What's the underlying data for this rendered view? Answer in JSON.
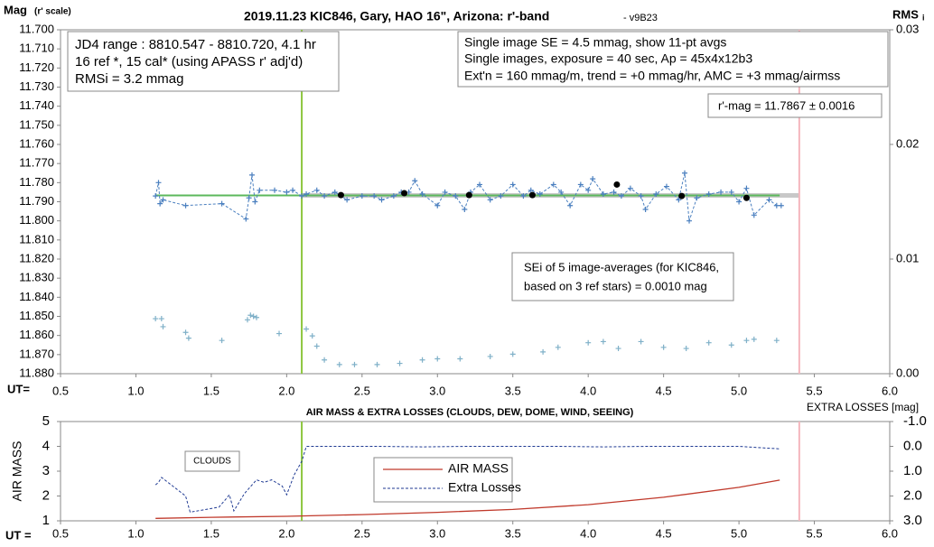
{
  "chart_data": [
    {
      "type": "scatter",
      "title": "2019.11.23 KIC846, Gary, HAO 16\", Arizona: r'-band",
      "version": "- v9B23",
      "y_label": "Mag",
      "y_label_note": "(r' scale)",
      "y2_label": "RMS",
      "y2_label_sub": "i",
      "x_label": "UT=",
      "xlim": [
        0.5,
        6.0
      ],
      "xticks": [
        0.5,
        {
          "value": 1,
          "label": "1.0"
        },
        1.5,
        {
          "value": 2,
          "label": "2.0"
        },
        2.5,
        {
          "value": 3,
          "label": "3.0"
        },
        3.5,
        {
          "value": 4,
          "label": "4.0"
        },
        4.5,
        {
          "value": 5,
          "label": "5.0"
        },
        5.5,
        {
          "value": 6,
          "label": "6.0"
        }
      ],
      "ylim": [
        11.88,
        11.7
      ],
      "yticks": [
        {
          "value": 11.7,
          "label": "11.700"
        },
        {
          "value": 11.71,
          "label": "11.710"
        },
        {
          "value": 11.72,
          "label": "11.720"
        },
        {
          "value": 11.73,
          "label": "11.730"
        },
        {
          "value": 11.74,
          "label": "11.740"
        },
        {
          "value": 11.75,
          "label": "11.750"
        },
        {
          "value": 11.76,
          "label": "11.760"
        },
        {
          "value": 11.77,
          "label": "11.770"
        },
        {
          "value": 11.78,
          "label": "11.780"
        },
        {
          "value": 11.79,
          "label": "11.790"
        },
        {
          "value": 11.8,
          "label": "11.800"
        },
        {
          "value": 11.81,
          "label": "11.810"
        },
        {
          "value": 11.82,
          "label": "11.820"
        },
        {
          "value": 11.83,
          "label": "11.830"
        },
        {
          "value": 11.84,
          "label": "11.840"
        },
        {
          "value": 11.85,
          "label": "11.850"
        },
        {
          "value": 11.86,
          "label": "11.860"
        },
        {
          "value": 11.87,
          "label": "11.870"
        },
        {
          "value": 11.88,
          "label": "11.880"
        }
      ],
      "y2lim": [
        0,
        0.03
      ],
      "y2ticks": [
        {
          "value": 0,
          "label": "0.00"
        },
        0.01,
        0.02,
        0.03
      ],
      "grid": false,
      "markers": [
        {
          "x": 2.1,
          "color": "#8dc63f"
        },
        {
          "x": 5.4,
          "color": "#f4b6bd"
        }
      ],
      "fit_band": {
        "x": [
          2.1,
          5.4
        ],
        "y": 11.7867,
        "color": "#c8c8c8"
      },
      "fit_line": {
        "x": [
          1.13,
          5.27
        ],
        "y": 11.7867,
        "color": "#5cb85c"
      },
      "series": [
        {
          "color": "#4a7fbf",
          "marker": "plus",
          "line": "dashed",
          "x": [
            1.13,
            1.15,
            1.16,
            1.18,
            1.33,
            1.57,
            1.73,
            1.75,
            1.77,
            1.79,
            1.82,
            1.92,
            2.0,
            2.04,
            2.1,
            2.13,
            2.2,
            2.25,
            2.32,
            2.4,
            2.5,
            2.58,
            2.63,
            2.71,
            2.76,
            2.81,
            2.85,
            2.9,
            3.0,
            3.05,
            3.12,
            3.18,
            3.22,
            3.28,
            3.35,
            3.42,
            3.5,
            3.57,
            3.62,
            3.68,
            3.77,
            3.82,
            3.88,
            3.95,
            4.0,
            4.03,
            4.1,
            4.17,
            4.22,
            4.28,
            4.35,
            4.38,
            4.45,
            4.52,
            4.6,
            4.64,
            4.67,
            4.72,
            4.8,
            4.88,
            4.95,
            5.0,
            5.05,
            5.1,
            5.2,
            5.25,
            5.28
          ],
          "values": [
            11.787,
            11.78,
            11.791,
            11.789,
            11.792,
            11.791,
            11.799,
            11.788,
            11.776,
            11.79,
            11.784,
            11.784,
            11.785,
            11.784,
            11.787,
            11.786,
            11.784,
            11.787,
            11.785,
            11.789,
            11.787,
            11.787,
            11.789,
            11.787,
            11.785,
            11.785,
            11.779,
            11.786,
            11.792,
            11.785,
            11.787,
            11.794,
            11.785,
            11.781,
            11.789,
            11.787,
            11.781,
            11.787,
            11.784,
            11.786,
            11.781,
            11.785,
            11.792,
            11.781,
            11.784,
            11.778,
            11.786,
            11.785,
            11.787,
            11.783,
            11.787,
            11.794,
            11.786,
            11.782,
            11.789,
            11.775,
            11.8,
            11.788,
            11.786,
            11.785,
            11.785,
            11.79,
            11.783,
            11.797,
            11.789,
            11.792,
            11.792
          ]
        },
        {
          "color": "#000000",
          "marker": "dot",
          "line": "none",
          "x": [
            2.36,
            2.78,
            3.21,
            3.63,
            4.19,
            4.62,
            5.05
          ],
          "values": [
            11.7865,
            11.7855,
            11.7865,
            11.7865,
            11.781,
            11.787,
            11.788
          ]
        },
        {
          "color": "#7fb0c8",
          "marker": "plus",
          "line": "none",
          "axis": "y2",
          "x": [
            1.13,
            1.17,
            1.18,
            1.33,
            1.35,
            1.57,
            1.74,
            1.76,
            1.78,
            1.8,
            1.95,
            2.13,
            2.17,
            2.2,
            2.25,
            2.35,
            2.45,
            2.6,
            2.75,
            2.9,
            3.0,
            3.15,
            3.35,
            3.5,
            3.7,
            3.8,
            4.0,
            4.1,
            4.2,
            4.35,
            4.5,
            4.65,
            4.8,
            4.95,
            5.05,
            5.1,
            5.25
          ],
          "values": [
            0.0048,
            0.0048,
            0.0041,
            0.0036,
            0.0031,
            0.0029,
            0.0047,
            0.0051,
            0.005,
            0.0049,
            0.0035,
            0.0039,
            0.0033,
            0.0024,
            0.0012,
            0.0008,
            0.0008,
            0.0008,
            0.0009,
            0.0012,
            0.0013,
            0.0013,
            0.0015,
            0.0017,
            0.0019,
            0.0023,
            0.0027,
            0.0028,
            0.0022,
            0.0028,
            0.0023,
            0.0022,
            0.0027,
            0.0025,
            0.0029,
            0.003,
            0.0029
          ]
        }
      ],
      "annotations": {
        "range_box": [
          "JD4 range : 8810.547 - 8810.720,  4.1  hr",
          "16 ref *, 15 cal* (using APASS r' adj'd)",
          "RMSi = 3.2 mmag"
        ],
        "info_box": [
          "Single image SE = 4.5 mmag, show  11-pt avgs",
          "Single images, exposure = 40 sec, Ap = 45x4x12b3",
          "Ext'n = 160 mmag/m, trend =  +0 mmag/hr, AMC = +3 mmag/airmss"
        ],
        "mag_box": "r'-mag = 11.7867 ± 0.0016",
        "sei_box": [
          "SEi of 5 image-averages (for KIC846,",
          "based on 3 ref stars) = 0.0010 mag"
        ]
      }
    },
    {
      "type": "line",
      "title": "AIR MASS & EXTRA LOSSES (CLOUDS, DEW, DOME, WIND, SEEING)",
      "x_label": "UT =",
      "y_label": "AIR MASS",
      "y2_label": "EXTRA LOSSES [mag]",
      "xlim": [
        0.5,
        6.0
      ],
      "xticks": [
        0.5,
        {
          "value": 1,
          "label": "1.0"
        },
        1.5,
        {
          "value": 2,
          "label": "2.0"
        },
        2.5,
        {
          "value": 3,
          "label": "3.0"
        },
        3.5,
        {
          "value": 4,
          "label": "4.0"
        },
        4.5,
        {
          "value": 5,
          "label": "5.0"
        },
        5.5,
        {
          "value": 6,
          "label": "6.0"
        }
      ],
      "ylim": [
        1,
        5
      ],
      "yticks": [
        1,
        2,
        3,
        4,
        5
      ],
      "y2lim": [
        3.0,
        -1.0
      ],
      "y2ticks": [
        {
          "value": -1,
          "label": "-1.0"
        },
        {
          "value": 0,
          "label": "0.0"
        },
        {
          "value": 1,
          "label": "1.0"
        },
        {
          "value": 2,
          "label": "2.0"
        },
        {
          "value": 3,
          "label": "3.0"
        }
      ],
      "grid": false,
      "markers": [
        {
          "x": 2.1,
          "color": "#8dc63f"
        },
        {
          "x": 5.4,
          "color": "#f4b6bd"
        }
      ],
      "annotation": "CLOUDS",
      "series": [
        {
          "name": "AIR MASS",
          "color": "#c0392b",
          "line": "solid",
          "x": [
            1.13,
            1.5,
            2.0,
            2.5,
            3.0,
            3.5,
            4.0,
            4.5,
            5.0,
            5.27
          ],
          "values": [
            1.1,
            1.14,
            1.18,
            1.25,
            1.34,
            1.46,
            1.65,
            1.95,
            2.35,
            2.64
          ]
        },
        {
          "name": "Extra Losses",
          "color": "#1f3a93",
          "line": "dashed",
          "axis": "y2",
          "x": [
            1.13,
            1.15,
            1.17,
            1.33,
            1.36,
            1.55,
            1.6,
            1.62,
            1.65,
            1.72,
            1.8,
            1.85,
            1.9,
            1.97,
            2.0,
            2.05,
            2.1,
            2.13,
            2.3,
            2.6,
            2.9,
            3.2,
            3.5,
            3.8,
            4.1,
            4.4,
            4.7,
            5.0,
            5.27
          ],
          "values": [
            1.55,
            1.45,
            1.25,
            2.0,
            2.65,
            2.45,
            2.1,
            1.95,
            2.6,
            1.9,
            1.35,
            1.45,
            1.35,
            1.6,
            1.95,
            1.15,
            0.6,
            0.0,
            0.0,
            0.0,
            0.02,
            0.0,
            0.0,
            0.0,
            0.02,
            0.0,
            0.0,
            0.0,
            0.1
          ]
        }
      ]
    }
  ]
}
